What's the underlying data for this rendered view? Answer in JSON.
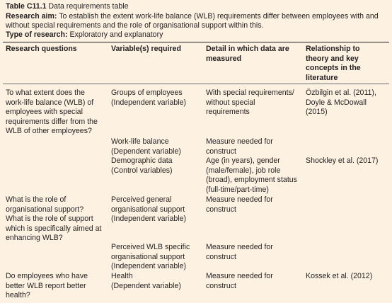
{
  "header": {
    "label": "Table C11.1",
    "title": "Data requirements table",
    "aim_label": "Research aim:",
    "aim": [
      "To establish the extent work-life balance (WLB) requirements differ between employees with and",
      "without special requirements and the role of organisational support within this."
    ],
    "type_label": "Type of research:",
    "type": "Exploratory and explanatory"
  },
  "table": {
    "columns": [
      [
        "Research questions"
      ],
      [
        "Variable(s) required"
      ],
      [
        "Detail in which data are",
        "measured"
      ],
      [
        "Relationship to",
        "theory and key",
        "concepts in the",
        "literature"
      ]
    ],
    "rows": [
      [
        [
          "To what extent does the",
          "work-life balance (WLB) of",
          "employees with special",
          "requirements differ from the",
          "WLB of other employees?"
        ],
        [
          "Groups of employees",
          "(Independent variable)"
        ],
        [
          "With special requirements/",
          "without special",
          "requirements"
        ],
        [
          "Özbilgin et al. (2011),",
          "Doyle & McDowall",
          "(2015)"
        ]
      ],
      [
        [],
        [
          "Work-life balance",
          "(Dependent variable)"
        ],
        [
          "Measure needed for",
          "construct"
        ],
        []
      ],
      [
        [],
        [
          "Demographic data",
          "(Control variables)"
        ],
        [
          "Age (in years), gender",
          "(male/female), job role",
          "(broad), employment status",
          "(full-time/part-time)"
        ],
        [
          "Shockley et al. (2017)"
        ]
      ],
      [
        [
          "What is the role of",
          "organisational support?",
          "What is the role of support",
          "which is specifically aimed at",
          "enhancing WLB?"
        ],
        [
          "Perceived general",
          "organisational support",
          "(Independent variable)"
        ],
        [
          "Measure needed for",
          "construct"
        ],
        []
      ],
      [
        [],
        [
          "Perceived WLB specific",
          "organisational support",
          "(Independent variable)"
        ],
        [
          "Measure needed for",
          "construct"
        ],
        []
      ],
      [
        [
          "Do employees who have",
          "better WLB report better",
          "health?"
        ],
        [
          "Health",
          "(Dependent variable)"
        ],
        [
          "Measure needed for",
          "construct"
        ],
        [
          "Kossek et al. (2012)"
        ]
      ]
    ]
  }
}
